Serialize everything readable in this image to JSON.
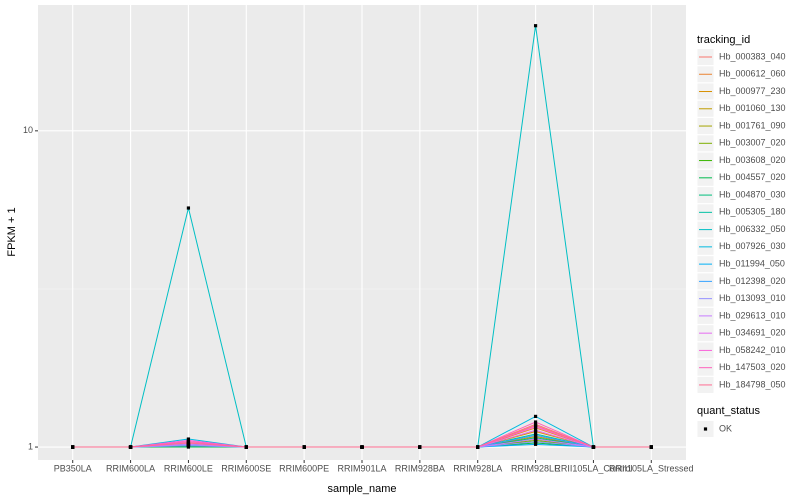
{
  "chart_data": {
    "type": "line",
    "x_label": "sample_name",
    "y_label": "FPKM + 1",
    "categories": [
      "PB350LA",
      "RRIM600LA",
      "RRIM600LE",
      "RRIM600SE",
      "RRIM600PE",
      "RRIM901LA",
      "RRIM928BA",
      "RRIM928LA",
      "RRIM928LE",
      "RRII105LA_Control",
      "RRII105LA_Stressed"
    ],
    "ylim": [
      0.91,
      25
    ],
    "yticks": [
      1,
      10
    ],
    "log_scale": true,
    "grid": true,
    "legend_title": "tracking_id",
    "legend_position": "right",
    "points_legend_title": "quant_status",
    "points_legend_label": "OK",
    "points_color": "#000000",
    "series": [
      {
        "name": "Hb_000383_040",
        "color": "#F8766D",
        "values": [
          1,
          1,
          1.04,
          1,
          1,
          1,
          1,
          1,
          1.18,
          1,
          1
        ]
      },
      {
        "name": "Hb_000612_060",
        "color": "#EA8331",
        "values": [
          1,
          1,
          1.03,
          1,
          1,
          1,
          1,
          1,
          1.15,
          1,
          1
        ]
      },
      {
        "name": "Hb_000977_230",
        "color": "#D89000",
        "values": [
          1,
          1,
          1.02,
          1,
          1,
          1,
          1,
          1,
          1.12,
          1,
          1
        ]
      },
      {
        "name": "Hb_001060_130",
        "color": "#C09B00",
        "values": [
          1,
          1,
          1.02,
          1,
          1,
          1,
          1,
          1,
          1.08,
          1,
          1
        ]
      },
      {
        "name": "Hb_001761_090",
        "color": "#A3A500",
        "values": [
          1,
          1,
          1.01,
          1,
          1,
          1,
          1,
          1,
          1.06,
          1,
          1
        ]
      },
      {
        "name": "Hb_003007_020",
        "color": "#7CAE00",
        "values": [
          1,
          1,
          1.01,
          1,
          1,
          1,
          1,
          1,
          1.05,
          1,
          1
        ]
      },
      {
        "name": "Hb_003608_020",
        "color": "#39B600",
        "values": [
          1,
          1,
          1.02,
          1,
          1,
          1,
          1,
          1,
          1.04,
          1,
          1
        ]
      },
      {
        "name": "Hb_004557_020",
        "color": "#00BB4E",
        "values": [
          1,
          1,
          1,
          1,
          1,
          1,
          1,
          1,
          1.03,
          1,
          1
        ]
      },
      {
        "name": "Hb_004870_030",
        "color": "#00BF7D",
        "values": [
          1,
          1,
          1.01,
          1,
          1,
          1,
          1,
          1,
          1.07,
          1,
          1
        ]
      },
      {
        "name": "Hb_005305_180",
        "color": "#00C1A3",
        "values": [
          1,
          1,
          1.02,
          1,
          1,
          1,
          1,
          1,
          1.1,
          1,
          1
        ]
      },
      {
        "name": "Hb_006332_050",
        "color": "#00BFC4",
        "values": [
          1,
          1,
          5.7,
          1,
          1,
          1,
          1,
          1,
          21.5,
          1,
          1
        ]
      },
      {
        "name": "Hb_007926_030",
        "color": "#00BAE0",
        "values": [
          1,
          1,
          1.06,
          1,
          1,
          1,
          1,
          1,
          1.25,
          1,
          1
        ]
      },
      {
        "name": "Hb_011994_050",
        "color": "#00B0F6",
        "values": [
          1,
          1,
          1.01,
          1,
          1,
          1,
          1,
          1,
          1.02,
          1,
          1
        ]
      },
      {
        "name": "Hb_012398_020",
        "color": "#35A2FF",
        "values": [
          1,
          1,
          1.02,
          1,
          1,
          1,
          1,
          1,
          1.09,
          1,
          1
        ]
      },
      {
        "name": "Hb_013093_010",
        "color": "#9590FF",
        "values": [
          1,
          1,
          1.01,
          1,
          1,
          1,
          1,
          1,
          1.04,
          1,
          1
        ]
      },
      {
        "name": "Hb_029613_010",
        "color": "#C77CFF",
        "values": [
          1,
          1,
          1.02,
          1,
          1,
          1,
          1,
          1,
          1.06,
          1,
          1
        ]
      },
      {
        "name": "Hb_034691_020",
        "color": "#E76BF3",
        "values": [
          1,
          1,
          1.03,
          1,
          1,
          1,
          1,
          1,
          1.13,
          1,
          1
        ]
      },
      {
        "name": "Hb_058242_010",
        "color": "#FA62DB",
        "values": [
          1,
          1,
          1.05,
          1,
          1,
          1,
          1,
          1,
          1.16,
          1,
          1
        ]
      },
      {
        "name": "Hb_147503_020",
        "color": "#FF62BC",
        "values": [
          1,
          1,
          1.04,
          1,
          1,
          1,
          1,
          1,
          1.2,
          1,
          1
        ]
      },
      {
        "name": "Hb_184798_050",
        "color": "#FF6C91",
        "values": [
          1,
          1,
          1.03,
          1,
          1,
          1,
          1,
          1,
          1.17,
          1,
          1
        ]
      }
    ]
  }
}
